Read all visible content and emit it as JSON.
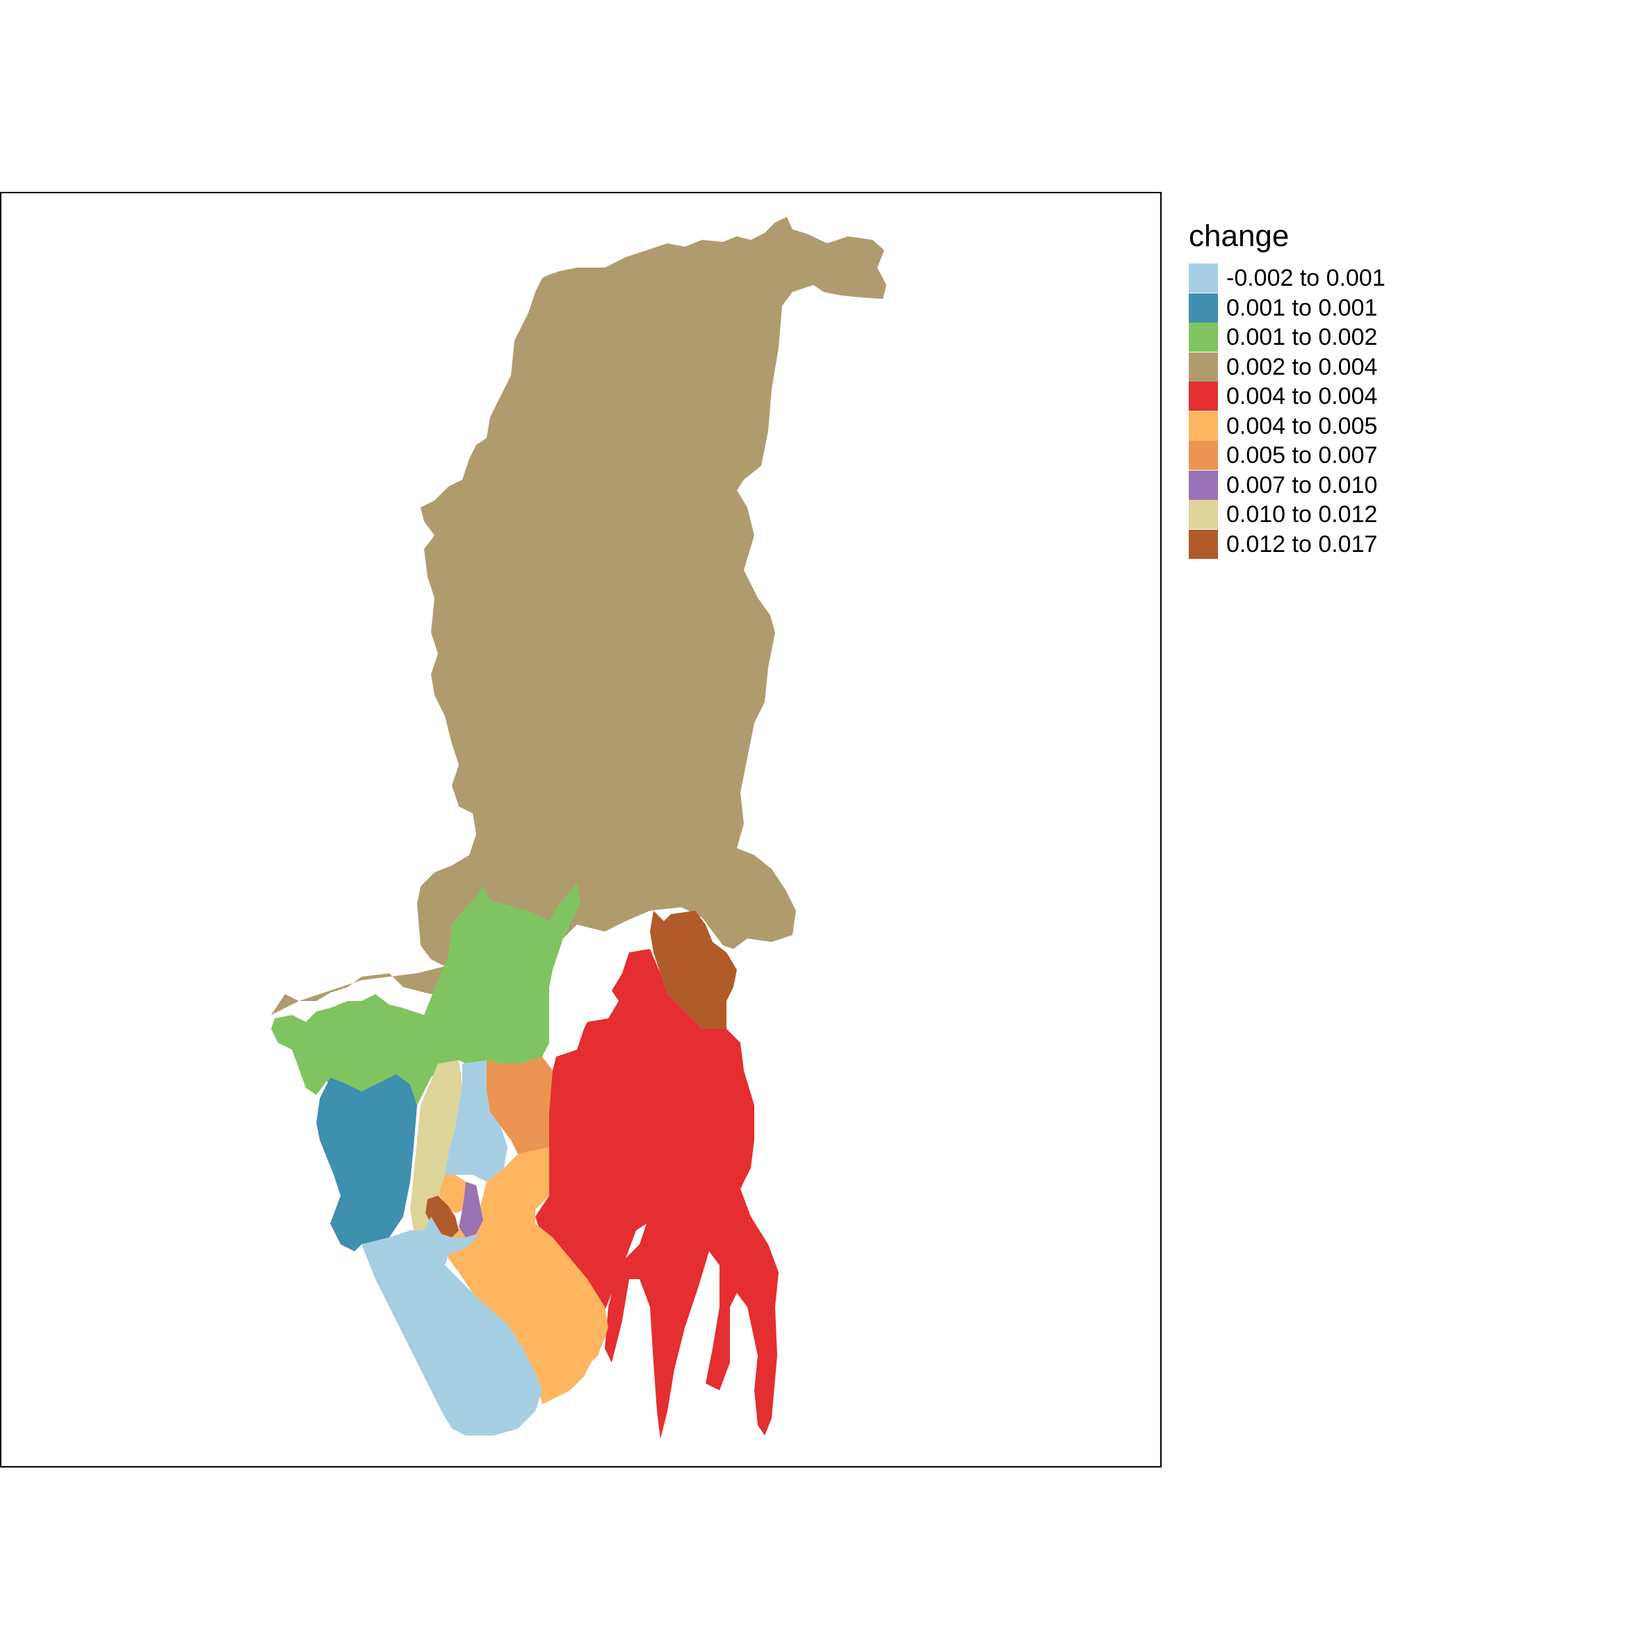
{
  "legend": {
    "title": "change",
    "classes": [
      {
        "label": "-0.002 to 0.001",
        "color": "#A6CEE3"
      },
      {
        "label": "0.001 to 0.001",
        "color": "#3F8FAE"
      },
      {
        "label": "0.001 to 0.002",
        "color": "#7FC461"
      },
      {
        "label": "0.002 to 0.004",
        "color": "#B09B6F"
      },
      {
        "label": "0.004 to 0.004",
        "color": "#E42E2F"
      },
      {
        "label": "0.004 to 0.005",
        "color": "#FDB55F"
      },
      {
        "label": "0.005 to 0.007",
        "color": "#EB9452"
      },
      {
        "label": "0.007 to 0.010",
        "color": "#9B72B5"
      },
      {
        "label": "0.010 to 0.012",
        "color": "#DDD59A"
      },
      {
        "label": "0.012 to 0.017",
        "color": "#B15A2A"
      }
    ]
  },
  "regions": [
    {
      "id": "north",
      "class": 3
    },
    {
      "id": "green-west",
      "class": 2
    },
    {
      "id": "northeast-brown",
      "class": 9
    },
    {
      "id": "red-east",
      "class": 4
    },
    {
      "id": "orange-mid",
      "class": 6
    },
    {
      "id": "teal-west",
      "class": 1
    },
    {
      "id": "beige-strip",
      "class": 8
    },
    {
      "id": "lightblue-mid",
      "class": 0
    },
    {
      "id": "orange-south",
      "class": 5
    },
    {
      "id": "purple-center",
      "class": 7
    },
    {
      "id": "brown-center",
      "class": 9
    },
    {
      "id": "lightblue-south",
      "class": 0
    }
  ]
}
